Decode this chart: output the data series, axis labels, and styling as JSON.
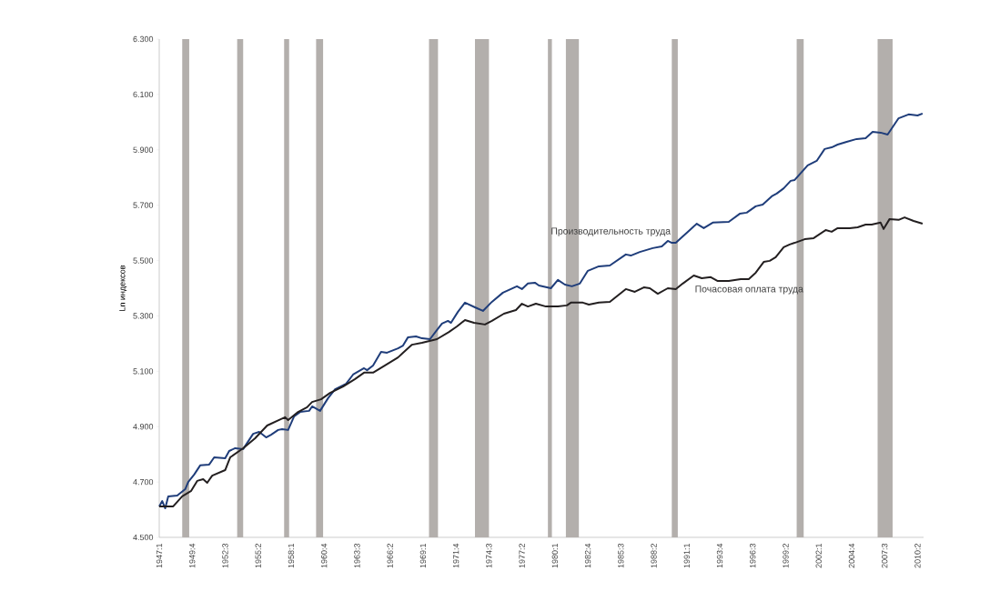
{
  "chart_data": {
    "type": "line",
    "ylabel": "Ln индексов",
    "xlim": [
      "1947-01",
      "2010-10"
    ],
    "ylim": [
      4.5,
      6.3
    ],
    "xticks": [
      {
        "value": "1947-01",
        "label": "1947:1"
      },
      {
        "value": "1949-10",
        "label": "1949:4"
      },
      {
        "value": "1952-07",
        "label": "1952:3"
      },
      {
        "value": "1955-04",
        "label": "1955:2"
      },
      {
        "value": "1958-01",
        "label": "1958:1"
      },
      {
        "value": "1960-10",
        "label": "1960:4"
      },
      {
        "value": "1963-07",
        "label": "1963:3"
      },
      {
        "value": "1966-04",
        "label": "1966:2"
      },
      {
        "value": "1969-01",
        "label": "1969:1"
      },
      {
        "value": "1971-10",
        "label": "1971:4"
      },
      {
        "value": "1974-07",
        "label": "1974:3"
      },
      {
        "value": "1977-04",
        "label": "1977:2"
      },
      {
        "value": "1980-01",
        "label": "1980:1"
      },
      {
        "value": "1982-10",
        "label": "1982:4"
      },
      {
        "value": "1985-07",
        "label": "1985:3"
      },
      {
        "value": "1988-04",
        "label": "1988:2"
      },
      {
        "value": "1991-01",
        "label": "1991:1"
      },
      {
        "value": "1993-10",
        "label": "1993:4"
      },
      {
        "value": "1996-07",
        "label": "1996:3"
      },
      {
        "value": "1999-04",
        "label": "1999:2"
      },
      {
        "value": "2002-01",
        "label": "2002:1"
      },
      {
        "value": "2004-10",
        "label": "2004:4"
      },
      {
        "value": "2007-07",
        "label": "2007:3"
      },
      {
        "value": "2010-04",
        "label": "2010:2"
      }
    ],
    "yticks": [
      {
        "value": 4.5,
        "label": "4.500"
      },
      {
        "value": 4.7,
        "label": "4.700"
      },
      {
        "value": 4.9,
        "label": "4.900"
      },
      {
        "value": 5.1,
        "label": "5.100"
      },
      {
        "value": 5.3,
        "label": "5.300"
      },
      {
        "value": 5.5,
        "label": "5.500"
      },
      {
        "value": 5.7,
        "label": "5.700"
      },
      {
        "value": 5.9,
        "label": "5.900"
      },
      {
        "value": 6.1,
        "label": "6.100"
      },
      {
        "value": 6.3,
        "label": "6.300"
      }
    ],
    "marker": "none",
    "line_style": "solid",
    "bands": [
      {
        "axis": "x",
        "from": "1948-12",
        "to": "1949-07",
        "color": "#b3afac"
      },
      {
        "axis": "x",
        "from": "1953-07",
        "to": "1954-01",
        "color": "#b3afac"
      },
      {
        "axis": "x",
        "from": "1957-06",
        "to": "1957-11",
        "color": "#b3afac"
      },
      {
        "axis": "x",
        "from": "1960-02",
        "to": "1960-09",
        "color": "#b3afac"
      },
      {
        "axis": "x",
        "from": "1969-07",
        "to": "1970-04",
        "color": "#b3afac"
      },
      {
        "axis": "x",
        "from": "1973-05",
        "to": "1974-07",
        "color": "#b3afac"
      },
      {
        "axis": "x",
        "from": "1979-06",
        "to": "1979-10",
        "color": "#b3afac"
      },
      {
        "axis": "x",
        "from": "1980-12",
        "to": "1982-01",
        "color": "#b3afac"
      },
      {
        "axis": "x",
        "from": "1989-10",
        "to": "1990-04",
        "color": "#b3afac"
      },
      {
        "axis": "x",
        "from": "2000-03",
        "to": "2000-10",
        "color": "#b3afac"
      },
      {
        "axis": "x",
        "from": "2006-12",
        "to": "2008-03",
        "color": "#b3afac"
      }
    ],
    "series": [
      {
        "name": "Производительность труда",
        "color": "#1f3d7a",
        "x": [
          "1947-01",
          "1947-04",
          "1947-07",
          "1947-10",
          "1948-07",
          "1949-03",
          "1949-06",
          "1949-12",
          "1950-06",
          "1951-03",
          "1951-08",
          "1952-07",
          "1952-11",
          "1953-05",
          "1954-01",
          "1954-11",
          "1955-05",
          "1955-12",
          "1956-05",
          "1956-12",
          "1957-04",
          "1957-10",
          "1958-04",
          "1958-10",
          "1959-07",
          "1959-10",
          "1960-06",
          "1961-02",
          "1961-09",
          "1962-08",
          "1963-03",
          "1964-02",
          "1964-05",
          "1964-11",
          "1965-07",
          "1966-01",
          "1966-12",
          "1967-05",
          "1967-10",
          "1968-06",
          "1968-12",
          "1969-08",
          "1970-03",
          "1970-08",
          "1971-02",
          "1971-05",
          "1971-12",
          "1972-07",
          "1973-05",
          "1974-01",
          "1974-10",
          "1975-09",
          "1976-11",
          "1977-04",
          "1977-10",
          "1978-05",
          "1978-09",
          "1979-09",
          "1980-04",
          "1980-11",
          "1981-06",
          "1982-02",
          "1982-10",
          "1983-09",
          "1984-08",
          "1985-12",
          "1986-05",
          "1987-02",
          "1988-03",
          "1988-12",
          "1989-06",
          "1989-10",
          "1990-02",
          "1990-09",
          "1991-11",
          "1992-06",
          "1993-03",
          "1994-07",
          "1995-06",
          "1996-01",
          "1996-10",
          "1997-05",
          "1998-02",
          "1998-07",
          "1999-02",
          "1999-09",
          "2000-01",
          "2001-02",
          "2001-11",
          "2002-07",
          "2003-02",
          "2003-08",
          "2004-05",
          "2005-03",
          "2005-12",
          "2006-07",
          "2007-03",
          "2007-10",
          "2008-09",
          "2009-07",
          "2010-04",
          "2010-09"
        ],
        "values": [
          4.612,
          4.631,
          4.605,
          4.648,
          4.651,
          4.674,
          4.7,
          4.727,
          4.76,
          4.763,
          4.789,
          4.786,
          4.812,
          4.822,
          4.819,
          4.874,
          4.881,
          4.861,
          4.871,
          4.888,
          4.891,
          4.888,
          4.937,
          4.953,
          4.957,
          4.973,
          4.957,
          5.003,
          5.035,
          5.055,
          5.088,
          5.111,
          5.104,
          5.121,
          5.17,
          5.167,
          5.183,
          5.193,
          5.223,
          5.226,
          5.219,
          5.216,
          5.249,
          5.272,
          5.282,
          5.275,
          5.315,
          5.348,
          5.331,
          5.318,
          5.351,
          5.384,
          5.407,
          5.397,
          5.417,
          5.42,
          5.41,
          5.4,
          5.43,
          5.413,
          5.407,
          5.417,
          5.463,
          5.479,
          5.482,
          5.522,
          5.518,
          5.531,
          5.545,
          5.551,
          5.571,
          5.564,
          5.564,
          5.587,
          5.633,
          5.617,
          5.637,
          5.64,
          5.669,
          5.673,
          5.696,
          5.702,
          5.732,
          5.742,
          5.761,
          5.788,
          5.791,
          5.844,
          5.86,
          5.903,
          5.909,
          5.919,
          5.929,
          5.939,
          5.942,
          5.965,
          5.962,
          5.955,
          6.014,
          6.028,
          6.024,
          6.031
        ]
      },
      {
        "name": "Почасовая оплата труда",
        "color": "#231f20",
        "x": [
          "1947-01",
          "1948-03",
          "1948-12",
          "1949-09",
          "1950-03",
          "1950-09",
          "1951-01",
          "1951-06",
          "1952-07",
          "1952-12",
          "1954-01",
          "1955-01",
          "1956-01",
          "1957-01",
          "1957-07",
          "1957-10",
          "1958-08",
          "1959-05",
          "1959-10",
          "1960-07",
          "1961-04",
          "1962-05",
          "1963-05",
          "1964-02",
          "1964-11",
          "1965-11",
          "1966-12",
          "1967-05",
          "1968-02",
          "1968-12",
          "1970-03",
          "1971-03",
          "1971-11",
          "1972-07",
          "1973-04",
          "1974-03",
          "1974-10",
          "1975-10",
          "1976-10",
          "1977-04",
          "1977-10",
          "1978-06",
          "1979-04",
          "1980-04",
          "1981-01",
          "1981-05",
          "1982-05",
          "1982-11",
          "1983-09",
          "1984-08",
          "1985-12",
          "1986-09",
          "1987-06",
          "1987-12",
          "1988-08",
          "1989-06",
          "1990-02",
          "1990-09",
          "1991-08",
          "1992-04",
          "1993-01",
          "1993-08",
          "1994-07",
          "1995-07",
          "1996-03",
          "1996-10",
          "1997-06",
          "1997-12",
          "1998-06",
          "1999-02",
          "1999-08",
          "2000-01",
          "2000-11",
          "2001-08",
          "2002-08",
          "2003-02",
          "2003-08",
          "2004-08",
          "2005-04",
          "2005-12",
          "2006-06",
          "2007-03",
          "2007-06",
          "2007-12",
          "2008-09",
          "2009-03",
          "2009-12",
          "2010-09"
        ],
        "values": [
          4.612,
          4.612,
          4.648,
          4.668,
          4.704,
          4.71,
          4.697,
          4.723,
          4.743,
          4.789,
          4.822,
          4.858,
          4.904,
          4.924,
          4.934,
          4.924,
          4.953,
          4.97,
          4.989,
          4.999,
          5.022,
          5.045,
          5.072,
          5.095,
          5.095,
          5.121,
          5.15,
          5.167,
          5.196,
          5.203,
          5.216,
          5.242,
          5.262,
          5.285,
          5.275,
          5.269,
          5.282,
          5.308,
          5.321,
          5.344,
          5.334,
          5.344,
          5.334,
          5.334,
          5.338,
          5.348,
          5.348,
          5.341,
          5.348,
          5.351,
          5.397,
          5.387,
          5.403,
          5.4,
          5.38,
          5.4,
          5.397,
          5.417,
          5.446,
          5.436,
          5.44,
          5.426,
          5.426,
          5.433,
          5.433,
          5.456,
          5.495,
          5.499,
          5.512,
          5.548,
          5.558,
          5.564,
          5.577,
          5.581,
          5.61,
          5.604,
          5.617,
          5.617,
          5.62,
          5.63,
          5.63,
          5.637,
          5.614,
          5.65,
          5.647,
          5.656,
          5.643,
          5.633
        ]
      }
    ]
  }
}
